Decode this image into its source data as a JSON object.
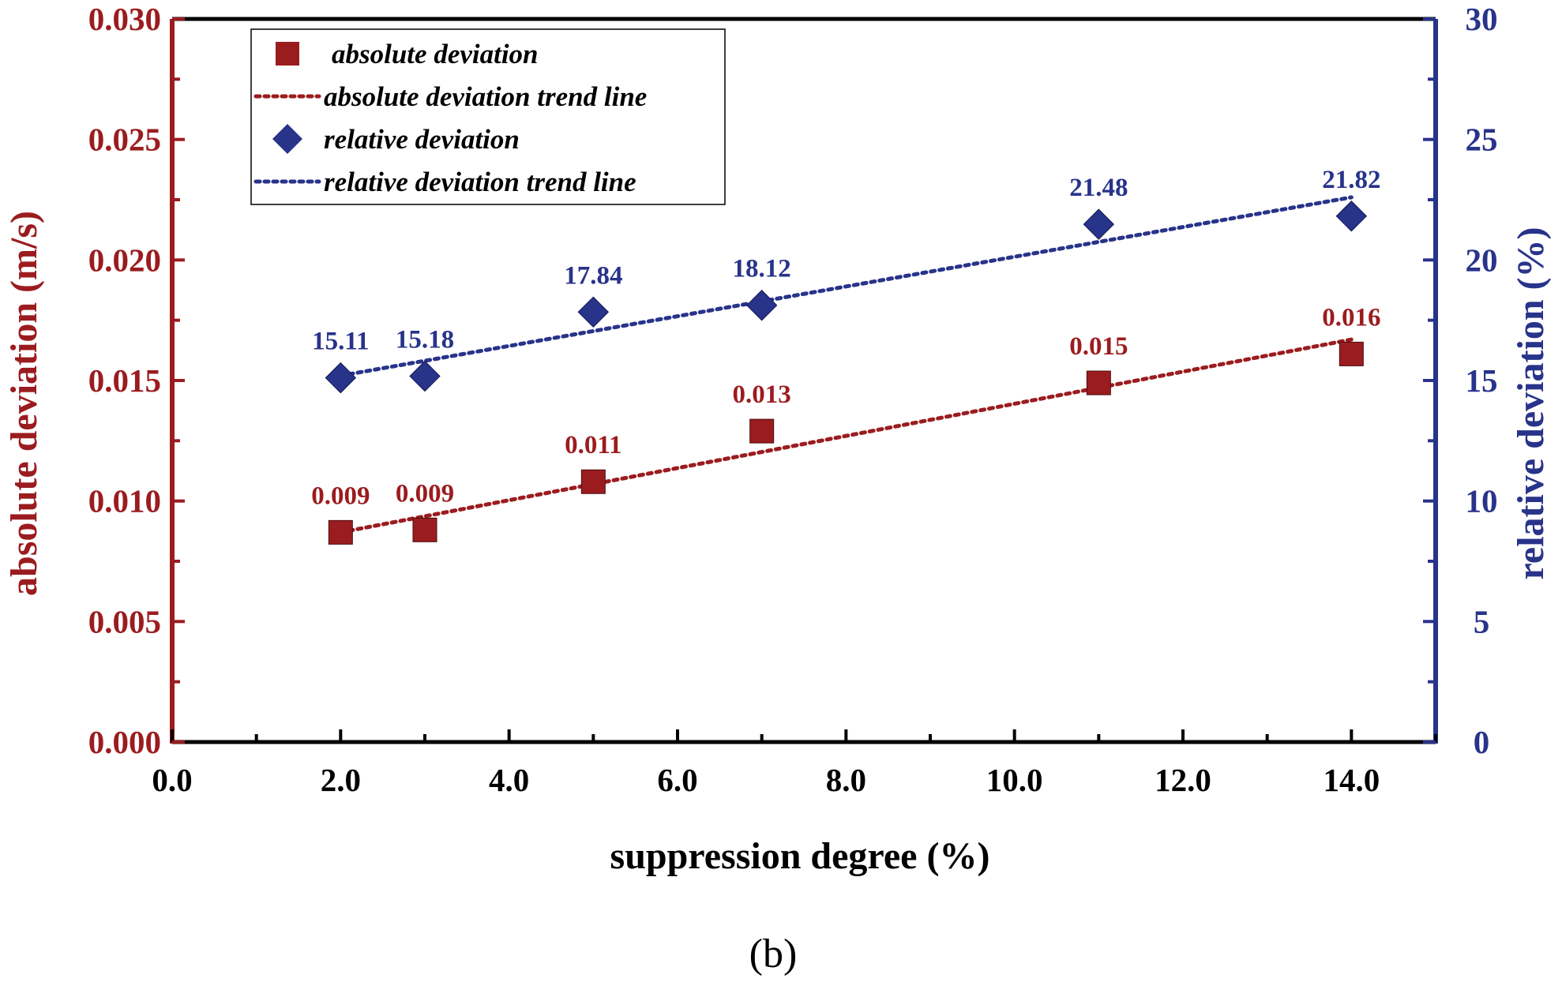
{
  "chart_data": {
    "type": "scatter",
    "title": "",
    "xlabel": "suppression degree (%)",
    "ylabel": "absolute deviation (m/s)",
    "y2label": "relative deviation (%)",
    "xlim": [
      0,
      15
    ],
    "ylim": [
      0,
      0.03
    ],
    "y2lim": [
      0,
      30
    ],
    "x_ticks": [
      "0.0",
      "2.0",
      "4.0",
      "6.0",
      "8.0",
      "10.0",
      "12.0",
      "14.0"
    ],
    "y_ticks": [
      "0.000",
      "0.005",
      "0.010",
      "0.015",
      "0.020",
      "0.025",
      "0.030"
    ],
    "y2_ticks": [
      "0",
      "5",
      "10",
      "15",
      "20",
      "25",
      "30"
    ],
    "x": [
      2,
      3,
      5,
      7,
      11,
      14
    ],
    "series": [
      {
        "name": "absolute deviation",
        "axis": "left",
        "marker": "square",
        "values": [
          0.0087,
          0.0088,
          0.0108,
          0.0129,
          0.0149,
          0.0161
        ],
        "labels": [
          "0.009",
          "0.009",
          "0.011",
          "0.013",
          "0.015",
          "0.016"
        ]
      },
      {
        "name": "relative deviation",
        "axis": "right",
        "marker": "diamond",
        "values": [
          15.11,
          15.18,
          17.84,
          18.12,
          21.48,
          21.82
        ],
        "labels": [
          "15.11",
          "15.18",
          "17.84",
          "18.12",
          "21.48",
          "21.82"
        ]
      }
    ],
    "trend_lines": [
      {
        "name": "absolute deviation trend line",
        "axis": "left",
        "x": [
          2,
          14
        ],
        "y": [
          0.0087,
          0.0167
        ]
      },
      {
        "name": "relative deviation trend line",
        "axis": "right",
        "x": [
          2,
          14
        ],
        "y": [
          15.2,
          22.6
        ]
      }
    ],
    "legend": {
      "position": "top-left",
      "entries": [
        "absolute deviation",
        "absolute deviation trend line",
        "relative deviation",
        "relative deviation trend line"
      ]
    },
    "grid": false,
    "caption": "(b)",
    "colors": {
      "left": "#9b1c1f",
      "right": "#28338a",
      "axis": "#000000"
    }
  }
}
